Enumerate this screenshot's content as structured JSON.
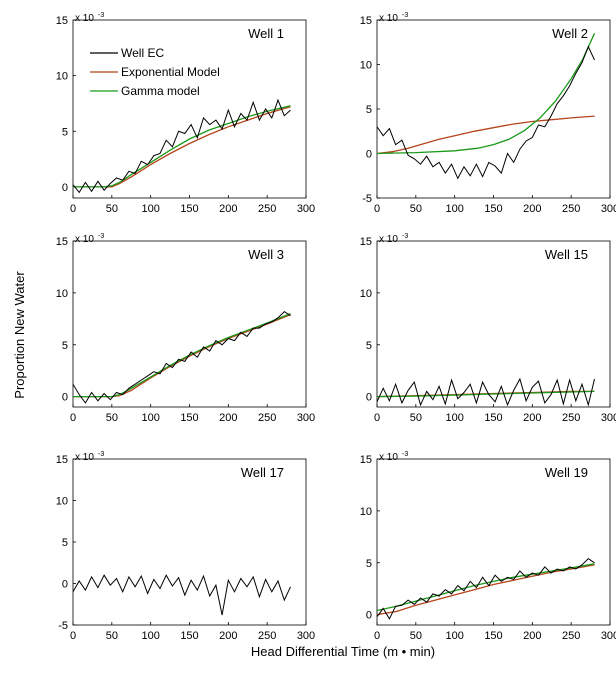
{
  "figure": {
    "ylabel": "Proportion New Water",
    "xlabel": "Head Differential Time (m • min)"
  },
  "colors": {
    "well_ec": "#000000",
    "exponential": "#b5451b",
    "gamma": "#1a9a1a"
  },
  "chart_data": [
    {
      "type": "line",
      "title": "Well 1",
      "multiplier": "x 10",
      "exponent": "-3",
      "xlim": [
        0,
        300
      ],
      "ylim": [
        -1,
        15
      ],
      "xticks": [
        0,
        50,
        100,
        150,
        200,
        250,
        300
      ],
      "yticks": [
        0,
        5,
        10,
        15
      ],
      "legend": {
        "placement": "top-left",
        "entries": [
          "Well EC",
          "Exponential Model",
          "Gamma model"
        ]
      },
      "series": [
        {
          "name": "Well EC",
          "x": [
            0,
            8,
            16,
            24,
            32,
            40,
            48,
            56,
            64,
            72,
            80,
            88,
            96,
            104,
            112,
            120,
            128,
            136,
            144,
            152,
            160,
            168,
            176,
            184,
            192,
            200,
            208,
            216,
            224,
            232,
            240,
            248,
            256,
            264,
            272,
            280
          ],
          "y": [
            0.2,
            -0.5,
            0.4,
            -0.4,
            0.5,
            -0.3,
            0.3,
            0.8,
            0.6,
            1.4,
            1.2,
            2.3,
            2.0,
            2.8,
            3.0,
            4.2,
            3.6,
            5.0,
            4.8,
            5.6,
            4.4,
            6.2,
            5.6,
            6.0,
            5.2,
            6.9,
            5.4,
            6.6,
            6.0,
            7.6,
            6.0,
            7.0,
            6.2,
            7.8,
            6.4,
            6.9
          ]
        },
        {
          "name": "Exponential Model",
          "x": [
            0,
            40,
            50,
            60,
            75,
            100,
            125,
            150,
            175,
            200,
            225,
            250,
            280
          ],
          "y": [
            0,
            0,
            0,
            0.3,
            0.9,
            2.0,
            3.0,
            3.9,
            4.7,
            5.4,
            6.0,
            6.6,
            7.2
          ]
        },
        {
          "name": "Gamma model",
          "x": [
            0,
            40,
            50,
            60,
            75,
            100,
            125,
            150,
            175,
            200,
            225,
            250,
            280
          ],
          "y": [
            0,
            0,
            0.1,
            0.4,
            1.1,
            2.2,
            3.3,
            4.3,
            5.1,
            5.7,
            6.3,
            6.8,
            7.3
          ]
        }
      ]
    },
    {
      "type": "line",
      "title": "Well 2",
      "multiplier": "x 10",
      "exponent": "-3",
      "xlim": [
        0,
        300
      ],
      "ylim": [
        -5,
        15
      ],
      "xticks": [
        0,
        50,
        100,
        150,
        200,
        250,
        300
      ],
      "yticks": [
        -5,
        0,
        5,
        10,
        15
      ],
      "series": [
        {
          "name": "Well EC",
          "x": [
            0,
            8,
            16,
            24,
            32,
            40,
            48,
            56,
            64,
            72,
            80,
            88,
            96,
            104,
            112,
            120,
            128,
            136,
            144,
            152,
            160,
            168,
            176,
            184,
            192,
            200,
            208,
            216,
            224,
            232,
            240,
            248,
            256,
            264,
            272,
            280
          ],
          "y": [
            3.0,
            2.0,
            2.8,
            1.0,
            1.5,
            -0.2,
            -0.6,
            -1.2,
            -0.3,
            -1.5,
            -1.0,
            -2.2,
            -1.2,
            -2.8,
            -1.5,
            -2.5,
            -1.2,
            -2.6,
            -1.0,
            -1.4,
            -2.2,
            0.0,
            -1.0,
            0.5,
            1.4,
            1.8,
            3.2,
            3.0,
            4.2,
            5.6,
            6.5,
            7.6,
            9.0,
            10.2,
            12.0,
            10.5
          ]
        },
        {
          "name": "Exponential Model",
          "x": [
            0,
            20,
            40,
            60,
            80,
            100,
            125,
            150,
            175,
            200,
            225,
            250,
            280
          ],
          "y": [
            0,
            0.2,
            0.6,
            1.1,
            1.6,
            2.0,
            2.5,
            2.9,
            3.3,
            3.6,
            3.8,
            4.0,
            4.2
          ]
        },
        {
          "name": "Gamma model",
          "x": [
            0,
            50,
            100,
            130,
            150,
            170,
            190,
            210,
            230,
            250,
            265,
            280
          ],
          "y": [
            0,
            0.1,
            0.3,
            0.6,
            1.0,
            1.6,
            2.6,
            4.0,
            5.9,
            8.4,
            10.6,
            13.5
          ]
        }
      ]
    },
    {
      "type": "line",
      "title": "Well 3",
      "multiplier": "x 10",
      "exponent": "-3",
      "xlim": [
        0,
        300
      ],
      "ylim": [
        -1,
        15
      ],
      "xticks": [
        0,
        50,
        100,
        150,
        200,
        250,
        300
      ],
      "yticks": [
        0,
        5,
        10,
        15
      ],
      "series": [
        {
          "name": "Well EC",
          "x": [
            0,
            8,
            16,
            24,
            32,
            40,
            48,
            56,
            64,
            72,
            80,
            88,
            96,
            104,
            112,
            120,
            128,
            136,
            144,
            152,
            160,
            168,
            176,
            184,
            192,
            200,
            208,
            216,
            224,
            232,
            240,
            248,
            256,
            264,
            272,
            280
          ],
          "y": [
            1.2,
            0.2,
            -0.6,
            0.4,
            -0.4,
            0.3,
            -0.3,
            0.4,
            0.2,
            0.8,
            1.2,
            1.6,
            2.0,
            2.4,
            2.2,
            3.2,
            2.8,
            3.6,
            3.4,
            4.3,
            3.8,
            4.8,
            4.4,
            5.4,
            5.0,
            5.6,
            5.4,
            6.2,
            5.8,
            6.6,
            6.6,
            7.0,
            7.2,
            7.6,
            8.2,
            7.8
          ]
        },
        {
          "name": "Exponential Model",
          "x": [
            0,
            50,
            60,
            75,
            100,
            125,
            150,
            175,
            200,
            225,
            250,
            280
          ],
          "y": [
            0,
            0,
            0.1,
            0.6,
            1.8,
            2.9,
            3.9,
            4.8,
            5.6,
            6.3,
            7.0,
            7.9
          ]
        },
        {
          "name": "Gamma model",
          "x": [
            0,
            50,
            60,
            75,
            100,
            125,
            150,
            175,
            200,
            225,
            250,
            280
          ],
          "y": [
            0,
            0,
            0.2,
            0.8,
            1.9,
            3.0,
            4.0,
            4.9,
            5.7,
            6.4,
            7.1,
            8.0
          ]
        }
      ]
    },
    {
      "type": "line",
      "title": "Well 15",
      "multiplier": "x 10",
      "exponent": "-3",
      "xlim": [
        0,
        300
      ],
      "ylim": [
        -1,
        15
      ],
      "xticks": [
        0,
        50,
        100,
        150,
        200,
        250,
        300
      ],
      "yticks": [
        0,
        5,
        10,
        15
      ],
      "series": [
        {
          "name": "Well EC",
          "x": [
            0,
            8,
            16,
            24,
            32,
            40,
            48,
            56,
            64,
            72,
            80,
            88,
            96,
            104,
            112,
            120,
            128,
            136,
            144,
            152,
            160,
            168,
            176,
            184,
            192,
            200,
            208,
            216,
            224,
            232,
            240,
            248,
            256,
            264,
            272,
            280
          ],
          "y": [
            -0.5,
            0.8,
            -0.4,
            1.2,
            -0.6,
            0.6,
            1.4,
            -0.8,
            0.5,
            -0.3,
            1.0,
            -0.7,
            1.6,
            -0.2,
            0.4,
            1.2,
            -0.6,
            1.4,
            0.2,
            -0.5,
            1.0,
            -0.8,
            0.6,
            1.7,
            -0.4,
            0.9,
            1.5,
            -0.6,
            0.2,
            1.6,
            -0.7,
            1.6,
            -0.4,
            1.2,
            -0.8,
            1.7
          ]
        },
        {
          "name": "Exponential Model",
          "x": [
            0,
            50,
            100,
            150,
            200,
            250,
            280
          ],
          "y": [
            0,
            0.1,
            0.2,
            0.3,
            0.4,
            0.5,
            0.5
          ]
        },
        {
          "name": "Gamma model",
          "x": [
            0,
            50,
            100,
            150,
            200,
            250,
            280
          ],
          "y": [
            0,
            0.05,
            0.15,
            0.25,
            0.35,
            0.45,
            0.5
          ]
        }
      ]
    },
    {
      "type": "line",
      "title": "Well 17",
      "multiplier": "x 10",
      "exponent": "-3",
      "xlim": [
        0,
        300
      ],
      "ylim": [
        -5,
        15
      ],
      "xticks": [
        0,
        50,
        100,
        150,
        200,
        250,
        300
      ],
      "yticks": [
        -5,
        0,
        5,
        10,
        15
      ],
      "series": [
        {
          "name": "Well EC",
          "x": [
            0,
            8,
            16,
            24,
            32,
            40,
            48,
            56,
            64,
            72,
            80,
            88,
            96,
            104,
            112,
            120,
            128,
            136,
            144,
            152,
            160,
            168,
            176,
            184,
            192,
            200,
            208,
            216,
            224,
            232,
            240,
            248,
            256,
            264,
            272,
            280
          ],
          "y": [
            -1.0,
            0.3,
            -0.8,
            0.8,
            -0.5,
            1.0,
            -0.2,
            0.6,
            -1.0,
            0.8,
            -0.4,
            0.9,
            -1.2,
            0.5,
            -0.6,
            1.0,
            -0.3,
            0.7,
            -1.4,
            0.4,
            -0.8,
            0.9,
            -1.5,
            -0.2,
            -3.8,
            0.4,
            -1.0,
            0.6,
            -0.4,
            0.8,
            -1.6,
            0.5,
            -1.0,
            0.3,
            -2.0,
            -0.4
          ]
        }
      ]
    },
    {
      "type": "line",
      "title": "Well 19",
      "multiplier": "x 10",
      "exponent": "-3",
      "xlim": [
        0,
        300
      ],
      "ylim": [
        -1,
        15
      ],
      "xticks": [
        0,
        50,
        100,
        150,
        200,
        250,
        300
      ],
      "yticks": [
        0,
        5,
        10,
        15
      ],
      "series": [
        {
          "name": "Well EC",
          "x": [
            0,
            8,
            16,
            24,
            32,
            40,
            48,
            56,
            64,
            72,
            80,
            88,
            96,
            104,
            112,
            120,
            128,
            136,
            144,
            152,
            160,
            168,
            176,
            184,
            192,
            200,
            208,
            216,
            224,
            232,
            240,
            248,
            256,
            264,
            272,
            280
          ],
          "y": [
            -0.2,
            0.6,
            -0.4,
            0.8,
            0.9,
            1.4,
            1.0,
            1.6,
            1.2,
            2.0,
            1.8,
            2.4,
            2.0,
            2.8,
            2.3,
            3.2,
            2.6,
            3.6,
            2.8,
            3.8,
            3.2,
            3.6,
            3.4,
            4.2,
            3.6,
            4.0,
            3.8,
            4.6,
            4.0,
            4.4,
            4.2,
            4.6,
            4.4,
            4.8,
            5.4,
            5.0
          ]
        },
        {
          "name": "Exponential Model",
          "x": [
            0,
            25,
            50,
            75,
            100,
            125,
            150,
            175,
            200,
            225,
            250,
            280
          ],
          "y": [
            0,
            0.3,
            0.9,
            1.4,
            1.9,
            2.4,
            2.9,
            3.3,
            3.7,
            4.1,
            4.4,
            4.8
          ]
        },
        {
          "name": "Gamma model",
          "x": [
            0,
            25,
            50,
            75,
            100,
            125,
            150,
            175,
            200,
            225,
            250,
            280
          ],
          "y": [
            0.4,
            0.8,
            1.3,
            1.8,
            2.3,
            2.8,
            3.2,
            3.6,
            3.9,
            4.2,
            4.5,
            4.9
          ]
        }
      ]
    }
  ]
}
